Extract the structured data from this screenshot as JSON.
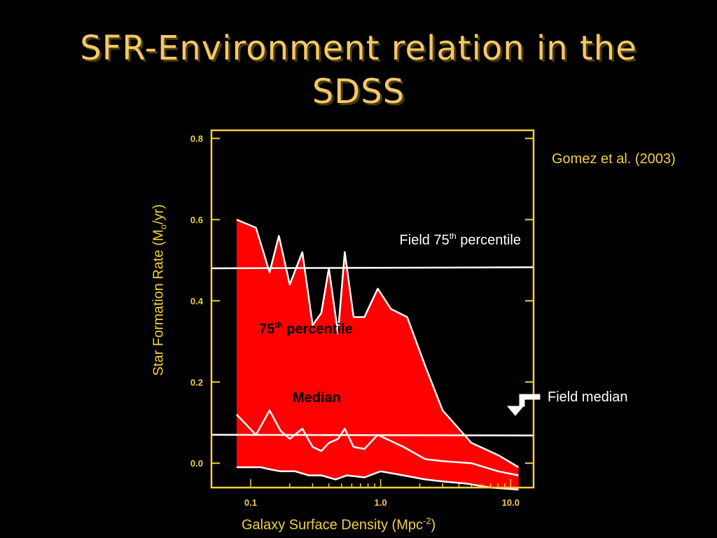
{
  "slide": {
    "title_line1": "SFR-Environment relation in the",
    "title_line2": "SDSS",
    "citation": "Gomez et al. (2003)",
    "field_median_label": "Field median",
    "field_median_marker_icon": "arrow-down-icon"
  },
  "chart_data": {
    "type": "area",
    "xscale": "log",
    "xlim": [
      0.05,
      15
    ],
    "ylim": [
      -0.06,
      0.82
    ],
    "xticks": [
      {
        "value": 0.1,
        "label": "0.1"
      },
      {
        "value": 1.0,
        "label": "1.0"
      },
      {
        "value": 10.0,
        "label": "10.0"
      }
    ],
    "yticks": [
      {
        "value": 0.0,
        "label": "0.0"
      },
      {
        "value": 0.2,
        "label": "0.2"
      },
      {
        "value": 0.4,
        "label": "0.4"
      },
      {
        "value": 0.6,
        "label": "0.6"
      },
      {
        "value": 0.8,
        "label": "0.8"
      }
    ],
    "xlabel": {
      "text": "Galaxy Surface Density (Mpc",
      "sup": "-2",
      "tail": ")"
    },
    "ylabel": {
      "text": "Star Formation Rate (M",
      "sub": "o",
      "tail": "/yr)"
    },
    "upper_75th": {
      "x": [
        0.078,
        0.11,
        0.14,
        0.165,
        0.2,
        0.25,
        0.3,
        0.35,
        0.4,
        0.47,
        0.53,
        0.62,
        0.75,
        0.95,
        1.2,
        1.6,
        2.2,
        3.0,
        5.0,
        8.0,
        11.5
      ],
      "y": [
        0.6,
        0.58,
        0.47,
        0.56,
        0.44,
        0.52,
        0.34,
        0.37,
        0.48,
        0.32,
        0.52,
        0.36,
        0.36,
        0.43,
        0.38,
        0.36,
        0.24,
        0.13,
        0.05,
        0.02,
        -0.01
      ]
    },
    "lower_bound": {
      "x": [
        0.078,
        0.12,
        0.14,
        0.17,
        0.22,
        0.28,
        0.35,
        0.45,
        0.55,
        0.75,
        1.0,
        1.5,
        2.2,
        3.0,
        4.5,
        7.0,
        11.5
      ],
      "y": [
        -0.01,
        -0.01,
        -0.015,
        -0.02,
        -0.02,
        -0.03,
        -0.03,
        -0.04,
        -0.03,
        -0.035,
        -0.02,
        -0.03,
        -0.04,
        -0.045,
        -0.05,
        -0.06,
        -0.065
      ]
    },
    "median": {
      "x": [
        0.078,
        0.11,
        0.14,
        0.17,
        0.2,
        0.25,
        0.3,
        0.35,
        0.4,
        0.47,
        0.53,
        0.62,
        0.75,
        0.95,
        1.5,
        2.2,
        3.0,
        5.0,
        8.0,
        11.5
      ],
      "y": [
        0.12,
        0.07,
        0.13,
        0.08,
        0.06,
        0.085,
        0.04,
        0.03,
        0.05,
        0.06,
        0.085,
        0.04,
        0.035,
        0.07,
        0.04,
        0.01,
        0.005,
        0.0,
        -0.02,
        -0.03
      ]
    },
    "field_75th_value": 0.48,
    "field_median_value": 0.07,
    "annotations": {
      "field75": {
        "pre": "Field 75",
        "sup": "th",
        "post": " percentile"
      },
      "p75": {
        "pre": "75",
        "sup": "th",
        "post": " percentile"
      },
      "median": "Median"
    },
    "colors": {
      "band": "#ff0000",
      "lines": "#ffffff",
      "axis": "#f4d03f",
      "ticks": "#f4d03f",
      "p75_label": "#000000",
      "median_label": "#000000",
      "field_label": "#ffffff"
    }
  }
}
